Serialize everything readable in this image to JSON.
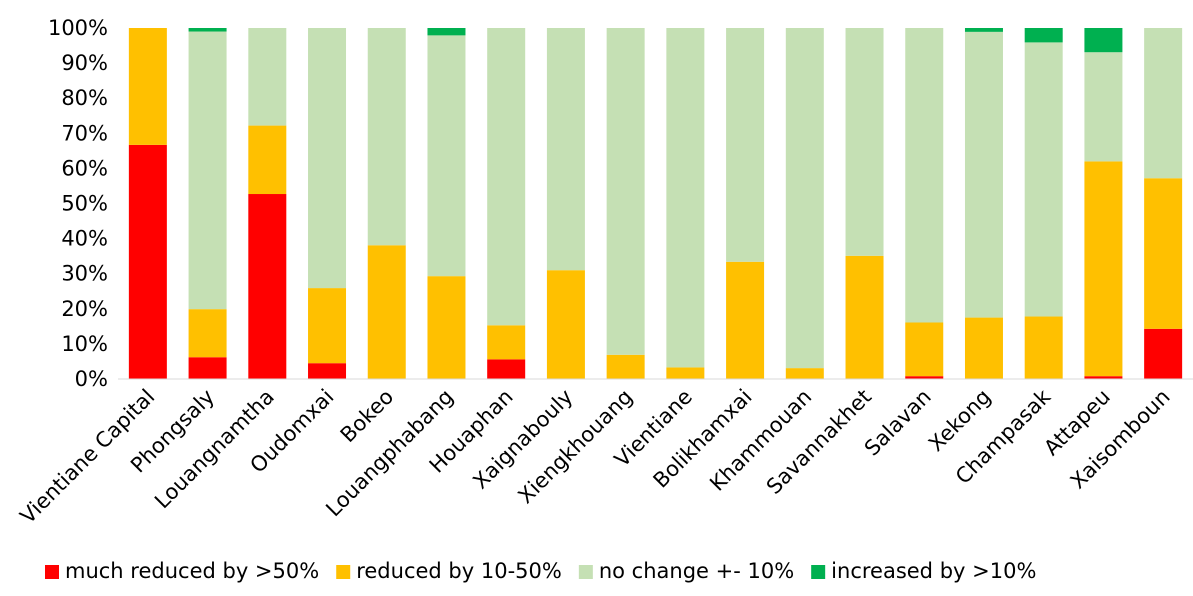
{
  "chart_data": {
    "type": "bar",
    "stacked": true,
    "percent": true,
    "categories": [
      "Vientiane Capital",
      "Phongsaly",
      "Louangnamtha",
      "Oudomxai",
      "Bokeo",
      "Louangphabang",
      "Houaphan",
      "Xaignabouly",
      "Xiengkhouang",
      "Vientiane",
      "Bolikhamxai",
      "Khammouan",
      "Savannakhet",
      "Salavan",
      "Xekong",
      "Champasak",
      "Attapeu",
      "Xaisomboun"
    ],
    "series": [
      {
        "name": "much reduced by >50%",
        "color": "#ff0000",
        "values": [
          66.7,
          6.2,
          52.7,
          4.5,
          0,
          0,
          5.6,
          0,
          0,
          0,
          0,
          0,
          0,
          0.8,
          0,
          0,
          0.8,
          14.3
        ]
      },
      {
        "name": "reduced by 10-50%",
        "color": "#ffc000",
        "values": [
          33.3,
          13.7,
          19.5,
          21.4,
          38.1,
          29.3,
          9.7,
          31,
          6.9,
          3.3,
          33.4,
          3.1,
          35.1,
          15.3,
          17.5,
          17.8,
          61.2,
          42.9
        ]
      },
      {
        "name": "no change +- 10%",
        "color": "#c5e0b4",
        "values": [
          0,
          79.1,
          27.8,
          74.1,
          61.9,
          68.6,
          84.7,
          69,
          93.1,
          96.7,
          66.6,
          96.9,
          64.9,
          83.9,
          81.4,
          78.1,
          31.1,
          42.8
        ]
      },
      {
        "name": "increased by >10%",
        "color": "#00b050",
        "values": [
          0,
          1,
          0,
          0,
          0,
          2.1,
          0,
          0,
          0,
          0,
          0,
          0,
          0,
          0,
          1.1,
          4.1,
          6.9,
          0
        ]
      }
    ],
    "ylim": [
      0,
      100
    ],
    "yticks": [
      "0%",
      "10%",
      "20%",
      "30%",
      "40%",
      "50%",
      "60%",
      "70%",
      "80%",
      "90%",
      "100%"
    ],
    "grid": false,
    "legend_position": "bottom",
    "title": "",
    "xlabel": "",
    "ylabel": ""
  }
}
